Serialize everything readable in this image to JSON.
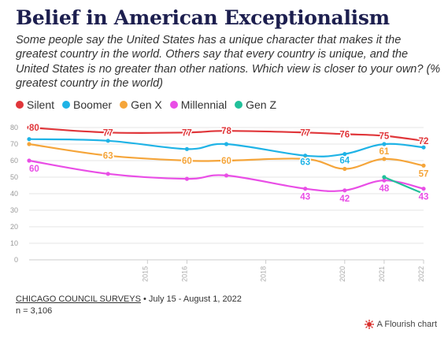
{
  "title": "Belief in American Exceptionalism",
  "subtitle": "Some people say the United States has a unique character that makes it the greatest country in the world. Others say that every country is unique, and the United States is no greater than other nations. Which view is closer to your own? (% greatest country in the world)",
  "footer": {
    "source": "CHICAGO COUNCIL SURVEYS",
    "dates": " • July 15 - August 1, 2022",
    "n": "n = 3,106",
    "flourish": "A Flourish chart"
  },
  "chart_data": {
    "type": "line",
    "title": "Belief in American Exceptionalism",
    "xlabel": "",
    "ylabel": "",
    "xlim": [
      2012,
      2022
    ],
    "ylim": [
      0,
      80
    ],
    "y_ticks": [
      0,
      10,
      20,
      30,
      40,
      50,
      60,
      70,
      80
    ],
    "x_ticks": [
      2015,
      2016,
      2018,
      2020,
      2021,
      2022
    ],
    "grid": true,
    "legend_position": "top-left",
    "series": [
      {
        "name": "Silent",
        "color": "#e0363a",
        "x": [
          2012,
          2014,
          2016,
          2017,
          2019,
          2020,
          2021,
          2022
        ],
        "y": [
          80,
          77,
          77,
          78,
          77,
          76,
          75,
          72
        ],
        "labels": [
          {
            "x": 2012,
            "y": 80,
            "text": "80"
          },
          {
            "x": 2014,
            "y": 77,
            "text": "77"
          },
          {
            "x": 2016,
            "y": 77,
            "text": "77"
          },
          {
            "x": 2017,
            "y": 78,
            "text": "78"
          },
          {
            "x": 2019,
            "y": 77,
            "text": "77"
          },
          {
            "x": 2020,
            "y": 76,
            "text": "76"
          },
          {
            "x": 2021,
            "y": 75,
            "text": "75"
          },
          {
            "x": 2022,
            "y": 72,
            "text": "72"
          }
        ]
      },
      {
        "name": "Boomer",
        "color": "#1fb3e6",
        "x": [
          2012,
          2014,
          2016,
          2017,
          2019,
          2020,
          2021,
          2022
        ],
        "y": [
          73,
          72,
          67,
          70,
          63,
          64,
          70,
          68
        ],
        "labels": [
          {
            "x": 2019,
            "y": 63,
            "text": "63"
          },
          {
            "x": 2020,
            "y": 64,
            "text": "64"
          }
        ]
      },
      {
        "name": "Gen X",
        "color": "#f5a53a",
        "x": [
          2012,
          2014,
          2016,
          2017,
          2019,
          2020,
          2021,
          2022
        ],
        "y": [
          70,
          63,
          60,
          60,
          61,
          55,
          61,
          57
        ],
        "labels": [
          {
            "x": 2014,
            "y": 63,
            "text": "63"
          },
          {
            "x": 2016,
            "y": 60,
            "text": "60"
          },
          {
            "x": 2017,
            "y": 60,
            "text": "60"
          },
          {
            "x": 2021,
            "y": 61,
            "text": "61"
          },
          {
            "x": 2022,
            "y": 57,
            "text": "57"
          }
        ]
      },
      {
        "name": "Millennial",
        "color": "#e94ee6",
        "x": [
          2012,
          2014,
          2016,
          2017,
          2019,
          2020,
          2021,
          2022
        ],
        "y": [
          60,
          52,
          49,
          51,
          43,
          42,
          48,
          43
        ],
        "labels": [
          {
            "x": 2012,
            "y": 60,
            "text": "60"
          },
          {
            "x": 2019,
            "y": 43,
            "text": "43"
          },
          {
            "x": 2020,
            "y": 42,
            "text": "42"
          },
          {
            "x": 2021,
            "y": 48,
            "text": "48"
          },
          {
            "x": 2022,
            "y": 43,
            "text": "43"
          }
        ]
      },
      {
        "name": "Gen Z",
        "color": "#21c09a",
        "x": [
          2021,
          2022
        ],
        "y": [
          50,
          40
        ],
        "labels": []
      }
    ]
  }
}
